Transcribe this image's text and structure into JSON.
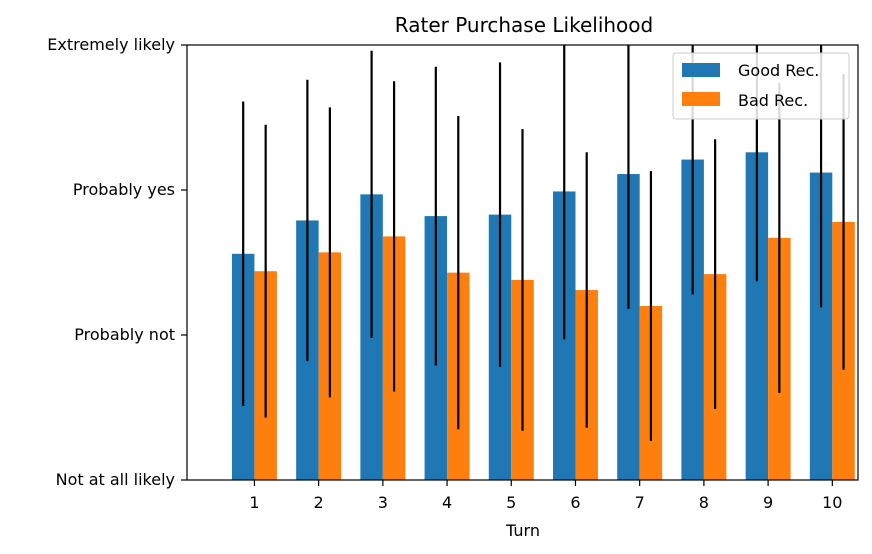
{
  "chart_data": {
    "type": "bar",
    "title": "Rater Purchase Likelihood",
    "xlabel": "Turn",
    "ylabel": "",
    "categories": [
      "1",
      "2",
      "3",
      "4",
      "5",
      "6",
      "7",
      "8",
      "9",
      "10"
    ],
    "ylim": [
      0,
      3
    ],
    "y_ticks": [
      {
        "value": 0,
        "label": "Not at all likely"
      },
      {
        "value": 1,
        "label": "Probably not"
      },
      {
        "value": 2,
        "label": "Probably yes"
      },
      {
        "value": 3,
        "label": "Extremely likely"
      }
    ],
    "series": [
      {
        "name": "Good Rec.",
        "color": "#1f77b4",
        "values": [
          1.56,
          1.79,
          1.97,
          1.82,
          1.83,
          1.99,
          2.11,
          2.21,
          2.26,
          2.12
        ],
        "error": [
          1.05,
          0.97,
          0.99,
          1.03,
          1.05,
          1.02,
          0.93,
          0.93,
          0.89,
          0.93
        ]
      },
      {
        "name": "Bad Rec.",
        "color": "#ff7f0e",
        "values": [
          1.44,
          1.57,
          1.68,
          1.43,
          1.38,
          1.31,
          1.2,
          1.42,
          1.67,
          1.78
        ],
        "error": [
          1.01,
          1.0,
          1.07,
          1.08,
          1.04,
          0.95,
          0.93,
          0.93,
          1.07,
          1.02
        ]
      }
    ],
    "error_bar_color": "#000000",
    "legend_position": "top-right",
    "grid": false
  }
}
